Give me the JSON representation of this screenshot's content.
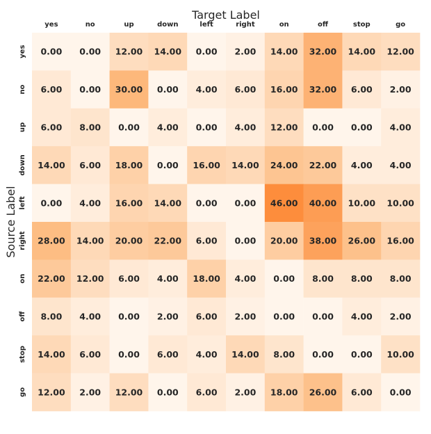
{
  "chart_data": {
    "type": "heatmap",
    "title": "",
    "xlabel": "Target Label",
    "ylabel": "Source Label",
    "x_categories": [
      "yes",
      "no",
      "up",
      "down",
      "left",
      "right",
      "on",
      "off",
      "stop",
      "go"
    ],
    "y_categories": [
      "yes",
      "no",
      "up",
      "down",
      "left",
      "right",
      "on",
      "off",
      "stop",
      "go"
    ],
    "values": [
      [
        0,
        0,
        12,
        14,
        0,
        2,
        14,
        32,
        14,
        12
      ],
      [
        6,
        0,
        30,
        0,
        4,
        6,
        16,
        32,
        6,
        2
      ],
      [
        6,
        8,
        0,
        4,
        0,
        4,
        12,
        0,
        0,
        4
      ],
      [
        14,
        6,
        18,
        0,
        16,
        14,
        24,
        22,
        4,
        4
      ],
      [
        0,
        4,
        16,
        14,
        0,
        0,
        46,
        40,
        10,
        10
      ],
      [
        28,
        14,
        20,
        22,
        6,
        0,
        20,
        38,
        26,
        16
      ],
      [
        22,
        12,
        6,
        4,
        18,
        4,
        0,
        8,
        8,
        8
      ],
      [
        8,
        4,
        0,
        2,
        6,
        2,
        0,
        0,
        4,
        2
      ],
      [
        14,
        6,
        0,
        6,
        4,
        14,
        8,
        0,
        0,
        10
      ],
      [
        12,
        2,
        12,
        0,
        6,
        2,
        18,
        26,
        6,
        0
      ]
    ],
    "value_format": "2 decimals",
    "colormap": {
      "low": "#fff5eb",
      "mid": "#fdbe85",
      "high": "#fd8d3c"
    },
    "value_range": [
      0,
      46
    ],
    "colorbar": false,
    "grid": false,
    "x_ticks_position": "top"
  }
}
